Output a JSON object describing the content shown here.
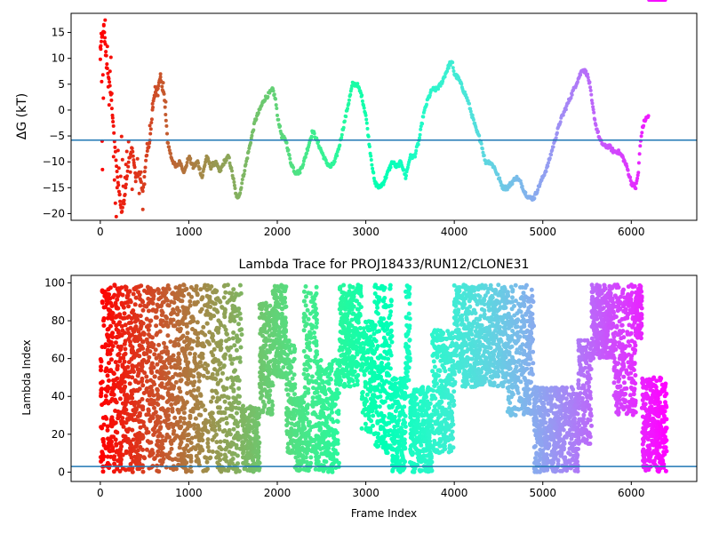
{
  "chart_data": [
    {
      "type": "scatter",
      "title": "",
      "xlabel": "",
      "ylabel": "ΔG (kT)",
      "xlim": [
        -330,
        6740
      ],
      "ylim": [
        -21.3,
        18.7
      ],
      "xticks": [
        0,
        1000,
        2000,
        3000,
        4000,
        5000,
        6000
      ],
      "xtick_labels": [
        "0",
        "1000",
        "2000",
        "3000",
        "4000",
        "5000",
        "6000"
      ],
      "yticks": [
        15,
        10,
        5,
        0,
        -5,
        -10,
        -15,
        -20
      ],
      "ytick_labels": [
        "15",
        "10",
        "5",
        "0",
        "−5",
        "−10",
        "−15",
        "−20"
      ],
      "hline": -5.8,
      "hline_color": "#1f77b4",
      "colormap": "rainbow (time-colored: red at start → purple at end)",
      "marker_size": 2,
      "grid": false,
      "trace_x": [
        0,
        40,
        80,
        120,
        160,
        200,
        240,
        280,
        320,
        360,
        400,
        440,
        480,
        520,
        560,
        600,
        640,
        680,
        720,
        760,
        800,
        850,
        900,
        950,
        1000,
        1050,
        1100,
        1150,
        1200,
        1250,
        1300,
        1350,
        1400,
        1450,
        1500,
        1540,
        1580,
        1600,
        1650,
        1700,
        1750,
        1800,
        1850,
        1900,
        1950,
        1980,
        2000,
        2050,
        2100,
        2150,
        2200,
        2250,
        2300,
        2350,
        2400,
        2450,
        2500,
        2550,
        2600,
        2650,
        2700,
        2750,
        2800,
        2850,
        2900,
        2950,
        3000,
        3050,
        3100,
        3150,
        3200,
        3250,
        3300,
        3350,
        3400,
        3450,
        3500,
        3550,
        3600,
        3650,
        3700,
        3750,
        3800,
        3850,
        3900,
        3950,
        3980,
        4000,
        4050,
        4100,
        4150,
        4200,
        4250,
        4300,
        4350,
        4400,
        4450,
        4500,
        4550,
        4600,
        4650,
        4700,
        4750,
        4800,
        4850,
        4900,
        4950,
        5000,
        5050,
        5100,
        5150,
        5200,
        5250,
        5300,
        5350,
        5400,
        5450,
        5500,
        5530,
        5560,
        5600,
        5650,
        5700,
        5750,
        5800,
        5850,
        5900,
        5950,
        6000,
        6050,
        6080,
        6100,
        6120,
        6150,
        6200,
        6250,
        6300,
        6350,
        6390
      ],
      "trace_y": [
        12,
        16,
        8,
        3,
        -6,
        -14,
        -20,
        -16,
        -10,
        -7,
        -13,
        -12,
        -16,
        -9,
        -6,
        2,
        4,
        6,
        3,
        -6,
        -9,
        -11,
        -10,
        -12,
        -9,
        -11,
        -10,
        -13,
        -9,
        -11,
        -10,
        -12,
        -10,
        -9,
        -13,
        -17,
        -16,
        -14,
        -10,
        -6,
        -2,
        0,
        2,
        3,
        4,
        2,
        -1,
        -5,
        -6,
        -10,
        -12,
        -12,
        -10,
        -7,
        -4,
        -6,
        -8,
        -10,
        -11,
        -10,
        -7,
        -3,
        1,
        5,
        5,
        3,
        -1,
        -8,
        -14,
        -15,
        -14,
        -12,
        -10,
        -11,
        -10,
        -13,
        -9,
        -9,
        -6,
        -1,
        2,
        4,
        4,
        5,
        7,
        9,
        9,
        7,
        6,
        4,
        2,
        -1,
        -4,
        -6,
        -10,
        -10,
        -11,
        -13,
        -15,
        -15,
        -14,
        -13,
        -14,
        -16,
        -17,
        -17,
        -15,
        -13,
        -11,
        -8,
        -5,
        -2,
        0,
        2,
        4,
        6,
        8,
        7,
        5,
        1,
        -3,
        -6,
        -7,
        -7,
        -8,
        -8,
        -9,
        -11,
        -14,
        -15,
        -12,
        -7,
        -4,
        -2,
        -1
      ],
      "series": [
        {
          "name": "",
          "x": [
            0,
            5,
            10,
            15,
            20,
            25,
            30,
            35,
            40,
            45,
            50,
            55,
            60,
            70,
            80,
            90,
            100,
            110,
            120,
            130,
            140,
            150,
            160,
            170,
            180,
            190,
            200,
            210,
            220,
            230,
            240,
            250,
            260,
            270,
            280,
            290,
            300,
            320,
            340,
            360,
            380,
            400,
            420,
            440,
            460,
            480,
            500,
            530,
            560,
            590,
            620,
            650,
            680,
            710,
            740
          ],
          "y": [
            9.8,
            11.8,
            14.8,
            5.5,
            -6.0,
            -11.5,
            6.8,
            2.3,
            16.5,
            15.0,
            13.2,
            17.4,
            10.6,
            8.2,
            12.3,
            4.5,
            1.0,
            7.5,
            10.2,
            3.2,
            -1.5,
            -9.0,
            -13.5,
            -18.0,
            -20.6,
            -15.0,
            -7.8,
            -11.2,
            -16.3,
            -12.8,
            -5.1,
            -9.6,
            -14.7,
            -18.1,
            -13.0,
            -10.5,
            -8.0,
            -6.1,
            -12.0,
            -15.3,
            -10.2,
            -13.8,
            -9.4,
            -16.1,
            -12.0,
            -19.2,
            -14.3,
            -6.5,
            -3.0,
            1.2,
            4.5,
            2.8,
            7.0,
            5.3,
            1.6
          ]
        }
      ]
    },
    {
      "type": "scatter",
      "title": "Lambda Trace for PROJ18433/RUN12/CLONE31",
      "xlabel": "Frame Index",
      "ylabel": "Lambda Index",
      "xlim": [
        -330,
        6740
      ],
      "ylim": [
        -4.95,
        103.95
      ],
      "xticks": [
        0,
        1000,
        2000,
        3000,
        4000,
        5000,
        6000
      ],
      "xtick_labels": [
        "0",
        "1000",
        "2000",
        "3000",
        "4000",
        "5000",
        "6000"
      ],
      "yticks": [
        100,
        80,
        60,
        40,
        20,
        0
      ],
      "ytick_labels": [
        "100",
        "80",
        "60",
        "40",
        "20",
        "0"
      ],
      "hline": 3,
      "hline_color": "#1f77b4",
      "colormap": "rainbow (time-colored: red at start → purple at end)",
      "marker_size": 2.5,
      "grid": false,
      "bands": [
        {
          "x": [
            0,
            80
          ],
          "y": [
            0,
            99
          ],
          "density": 60
        },
        {
          "x": [
            80,
            500
          ],
          "y": [
            0,
            99
          ],
          "density": 520
        },
        {
          "x": [
            520,
            1000
          ],
          "y": [
            0,
            99
          ],
          "density": 560
        },
        {
          "x": [
            1000,
            1500
          ],
          "y": [
            0,
            99
          ],
          "density": 440
        },
        {
          "x": [
            1500,
            1600
          ],
          "y": [
            0,
            99
          ],
          "density": 90
        },
        {
          "x": [
            1600,
            1800
          ],
          "y": [
            0,
            35
          ],
          "density": 200
        },
        {
          "x": [
            1800,
            1950
          ],
          "y": [
            30,
            90
          ],
          "density": 170
        },
        {
          "x": [
            1950,
            2100
          ],
          "y": [
            50,
            99
          ],
          "density": 200
        },
        {
          "x": [
            2100,
            2200
          ],
          "y": [
            10,
            70
          ],
          "density": 110
        },
        {
          "x": [
            2200,
            2300
          ],
          "y": [
            0,
            40
          ],
          "density": 110
        },
        {
          "x": [
            2300,
            2450
          ],
          "y": [
            0,
            99
          ],
          "density": 180
        },
        {
          "x": [
            2450,
            2700
          ],
          "y": [
            0,
            60
          ],
          "density": 260
        },
        {
          "x": [
            2700,
            2950
          ],
          "y": [
            45,
            99
          ],
          "density": 300
        },
        {
          "x": [
            2950,
            3100
          ],
          "y": [
            20,
            80
          ],
          "density": 160
        },
        {
          "x": [
            3100,
            3300
          ],
          "y": [
            10,
            99
          ],
          "density": 220
        },
        {
          "x": [
            3300,
            3450
          ],
          "y": [
            0,
            50
          ],
          "density": 170
        },
        {
          "x": [
            3450,
            3500
          ],
          "y": [
            40,
            99
          ],
          "density": 60
        },
        {
          "x": [
            3500,
            3750
          ],
          "y": [
            0,
            45
          ],
          "density": 290
        },
        {
          "x": [
            3750,
            4000
          ],
          "y": [
            10,
            75
          ],
          "density": 300
        },
        {
          "x": [
            4000,
            4600
          ],
          "y": [
            45,
            99
          ],
          "density": 650
        },
        {
          "x": [
            4600,
            4900
          ],
          "y": [
            30,
            99
          ],
          "density": 300
        },
        {
          "x": [
            4900,
            5400
          ],
          "y": [
            0,
            45
          ],
          "density": 560
        },
        {
          "x": [
            5400,
            5550
          ],
          "y": [
            15,
            70
          ],
          "density": 160
        },
        {
          "x": [
            5550,
            5800
          ],
          "y": [
            60,
            99
          ],
          "density": 300
        },
        {
          "x": [
            5800,
            6050
          ],
          "y": [
            30,
            99
          ],
          "density": 260
        },
        {
          "x": [
            6050,
            6120
          ],
          "y": [
            70,
            99
          ],
          "density": 70
        },
        {
          "x": [
            6120,
            6400
          ],
          "y": [
            0,
            50
          ],
          "density": 320
        }
      ]
    }
  ]
}
